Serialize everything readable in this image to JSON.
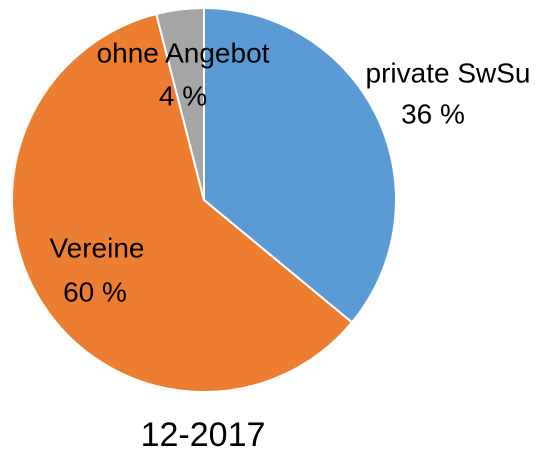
{
  "chart_data": {
    "type": "pie",
    "title": "12-2017",
    "categories": [
      "private SwSu",
      "Vereine",
      "ohne Angebot"
    ],
    "values": [
      36,
      60,
      4
    ],
    "value_labels": [
      "36 %",
      "60 %",
      "4 %"
    ],
    "colors": [
      "#5b9bd5",
      "#ed7d31",
      "#a5a5a5"
    ]
  }
}
